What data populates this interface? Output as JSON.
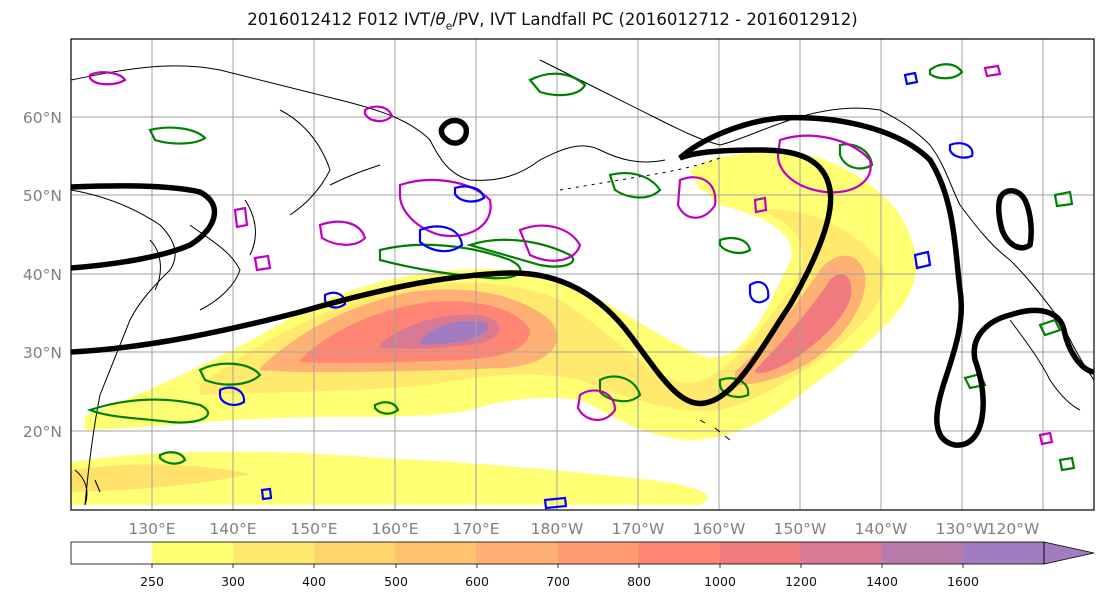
{
  "title": "2016012412 F012 IVT/θe/PV, IVT Landfall PC (2016012712 - 2016012912)",
  "title_parts": {
    "prefix": "2016012412 F012 IVT/",
    "theta": "θ",
    "sub": "e",
    "suffix": "/PV, IVT Landfall PC (2016012712 - 2016012912)"
  },
  "map": {
    "lat_labels": [
      "60°N",
      "50°N",
      "40°N",
      "30°N",
      "20°N"
    ],
    "lon_labels": [
      "130°E",
      "140°E",
      "150°E",
      "160°E",
      "170°E",
      "180°W",
      "170°W",
      "160°W",
      "150°W",
      "140°W",
      "130°W",
      "120°W"
    ],
    "label_color": "#808080",
    "grid_color": "#a0a0a0"
  },
  "colorbar": {
    "ticks": [
      "250",
      "300",
      "400",
      "500",
      "600",
      "700",
      "800",
      "1000",
      "1200",
      "1400",
      "1600"
    ],
    "colors": [
      "#ffffff",
      "#ffff73",
      "#ffea6e",
      "#ffd46a",
      "#ffc26e",
      "#ffb074",
      "#ff9c72",
      "#ff8674",
      "#f07a7e",
      "#d97a94",
      "#b87aaa",
      "#a27bc0"
    ],
    "extend": "max"
  },
  "legend_colors": {
    "pc_contour": "#000000",
    "theta_e": "#008000",
    "pv_magenta": "#c000c0",
    "pv_blue": "#0000ff"
  }
}
